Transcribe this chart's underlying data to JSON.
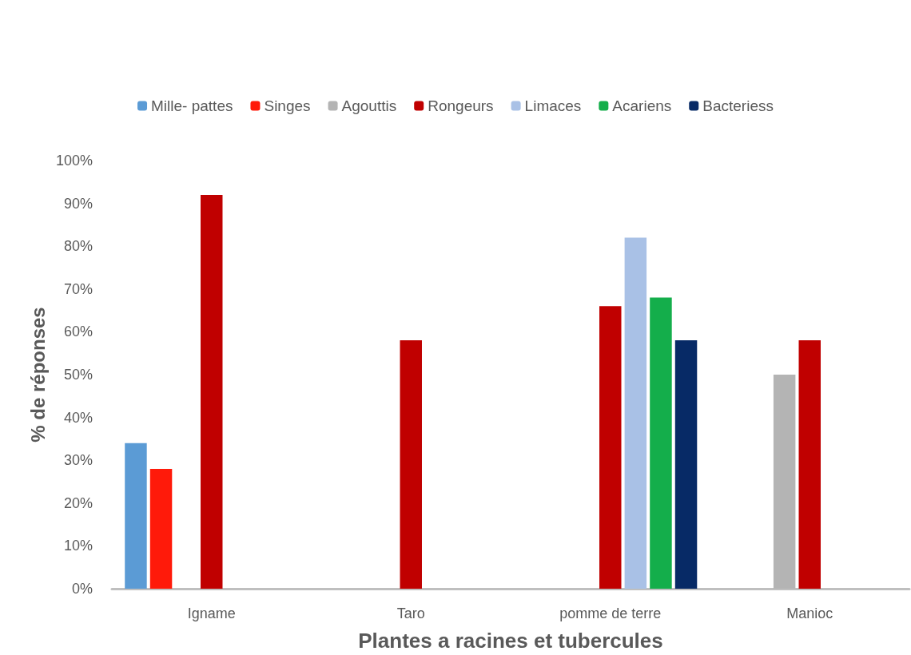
{
  "chart_data": {
    "type": "bar",
    "xlabel": "Plantes a racines et tubercules",
    "ylabel": "% de réponses",
    "categories": [
      "Igname",
      "Taro",
      "pomme de terre",
      "Manioc"
    ],
    "series": [
      {
        "name": "Mille- pattes",
        "color": "#5b9bd5",
        "values": [
          34,
          null,
          null,
          null
        ]
      },
      {
        "name": "Singes",
        "color": "#ff1a0a",
        "values": [
          28,
          null,
          null,
          null
        ]
      },
      {
        "name": "Agouttis",
        "color": "#b4b4b4",
        "values": [
          null,
          null,
          null,
          50
        ]
      },
      {
        "name": "Rongeurs",
        "color": "#c00000",
        "values": [
          92,
          58,
          66,
          58
        ]
      },
      {
        "name": "Limaces",
        "color": "#a9c1e6",
        "values": [
          null,
          null,
          82,
          null
        ]
      },
      {
        "name": "Acariens",
        "color": "#14ae4b",
        "values": [
          null,
          null,
          68,
          null
        ]
      },
      {
        "name": "Bacteriess",
        "color": "#072a66",
        "values": [
          null,
          null,
          58,
          null
        ]
      }
    ],
    "ylim": [
      0,
      100
    ],
    "yticks": [
      {
        "value": 0,
        "label": "0%"
      },
      {
        "value": 10,
        "label": "10%"
      },
      {
        "value": 20,
        "label": "20%"
      },
      {
        "value": 30,
        "label": "30%"
      },
      {
        "value": 40,
        "label": "40%"
      },
      {
        "value": 50,
        "label": "50%"
      },
      {
        "value": 60,
        "label": "60%"
      },
      {
        "value": 70,
        "label": "70%"
      },
      {
        "value": 80,
        "label": "80%"
      },
      {
        "value": 90,
        "label": "90%"
      },
      {
        "value": 100,
        "label": "100%"
      }
    ],
    "grid": false,
    "legend": "top"
  }
}
